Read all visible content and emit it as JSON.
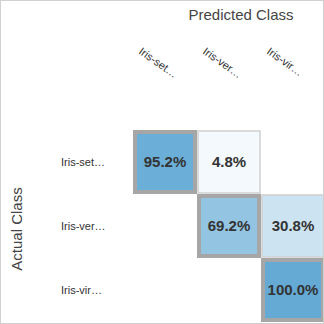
{
  "chart_data": {
    "type": "heatmap",
    "title": "Predicted Class",
    "x_label": "Predicted Class",
    "y_label": "Actual Class",
    "x_categories": [
      "Iris-set…",
      "Iris-ver…",
      "Iris-vir…"
    ],
    "y_categories": [
      "Iris-set…",
      "Iris-ver…",
      "Iris-vir…"
    ],
    "cells": [
      [
        95.2,
        4.8,
        null
      ],
      [
        null,
        69.2,
        30.8
      ],
      [
        null,
        null,
        100.0
      ]
    ],
    "value_labels": [
      [
        "95.2%",
        "4.8%",
        null
      ],
      [
        null,
        "69.2%",
        "30.8%"
      ],
      [
        null,
        null,
        "100.0%"
      ]
    ],
    "color": "#64aad5",
    "data_labels": true
  }
}
